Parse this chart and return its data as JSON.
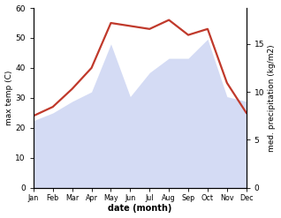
{
  "months": [
    "Jan",
    "Feb",
    "Mar",
    "Apr",
    "May",
    "Jun",
    "Jul",
    "Aug",
    "Sep",
    "Oct",
    "Nov",
    "Dec"
  ],
  "month_x": [
    1,
    2,
    3,
    4,
    5,
    6,
    7,
    8,
    9,
    10,
    11,
    12
  ],
  "temp_max": [
    24,
    27,
    33,
    40,
    55,
    54,
    53,
    56,
    51,
    53,
    35,
    25
  ],
  "precip_kg": [
    7.0,
    7.8,
    9.0,
    10.0,
    15.0,
    9.5,
    12.0,
    13.5,
    13.5,
    15.5,
    9.5,
    9.0
  ],
  "temp_ylim": [
    0,
    60
  ],
  "precip_ylim_max": 18.75,
  "temp_color": "#c0392b",
  "precip_fill_color": "#b8c4ee",
  "xlabel": "date (month)",
  "ylabel_left": "max temp (C)",
  "ylabel_right": "med. precipitation (kg/m2)",
  "temp_linewidth": 1.6,
  "bg_color": "#ffffff",
  "left_yticks": [
    0,
    10,
    20,
    30,
    40,
    50,
    60
  ],
  "right_yticks": [
    0,
    5,
    10,
    15
  ],
  "precip_fill_alpha": 0.6
}
